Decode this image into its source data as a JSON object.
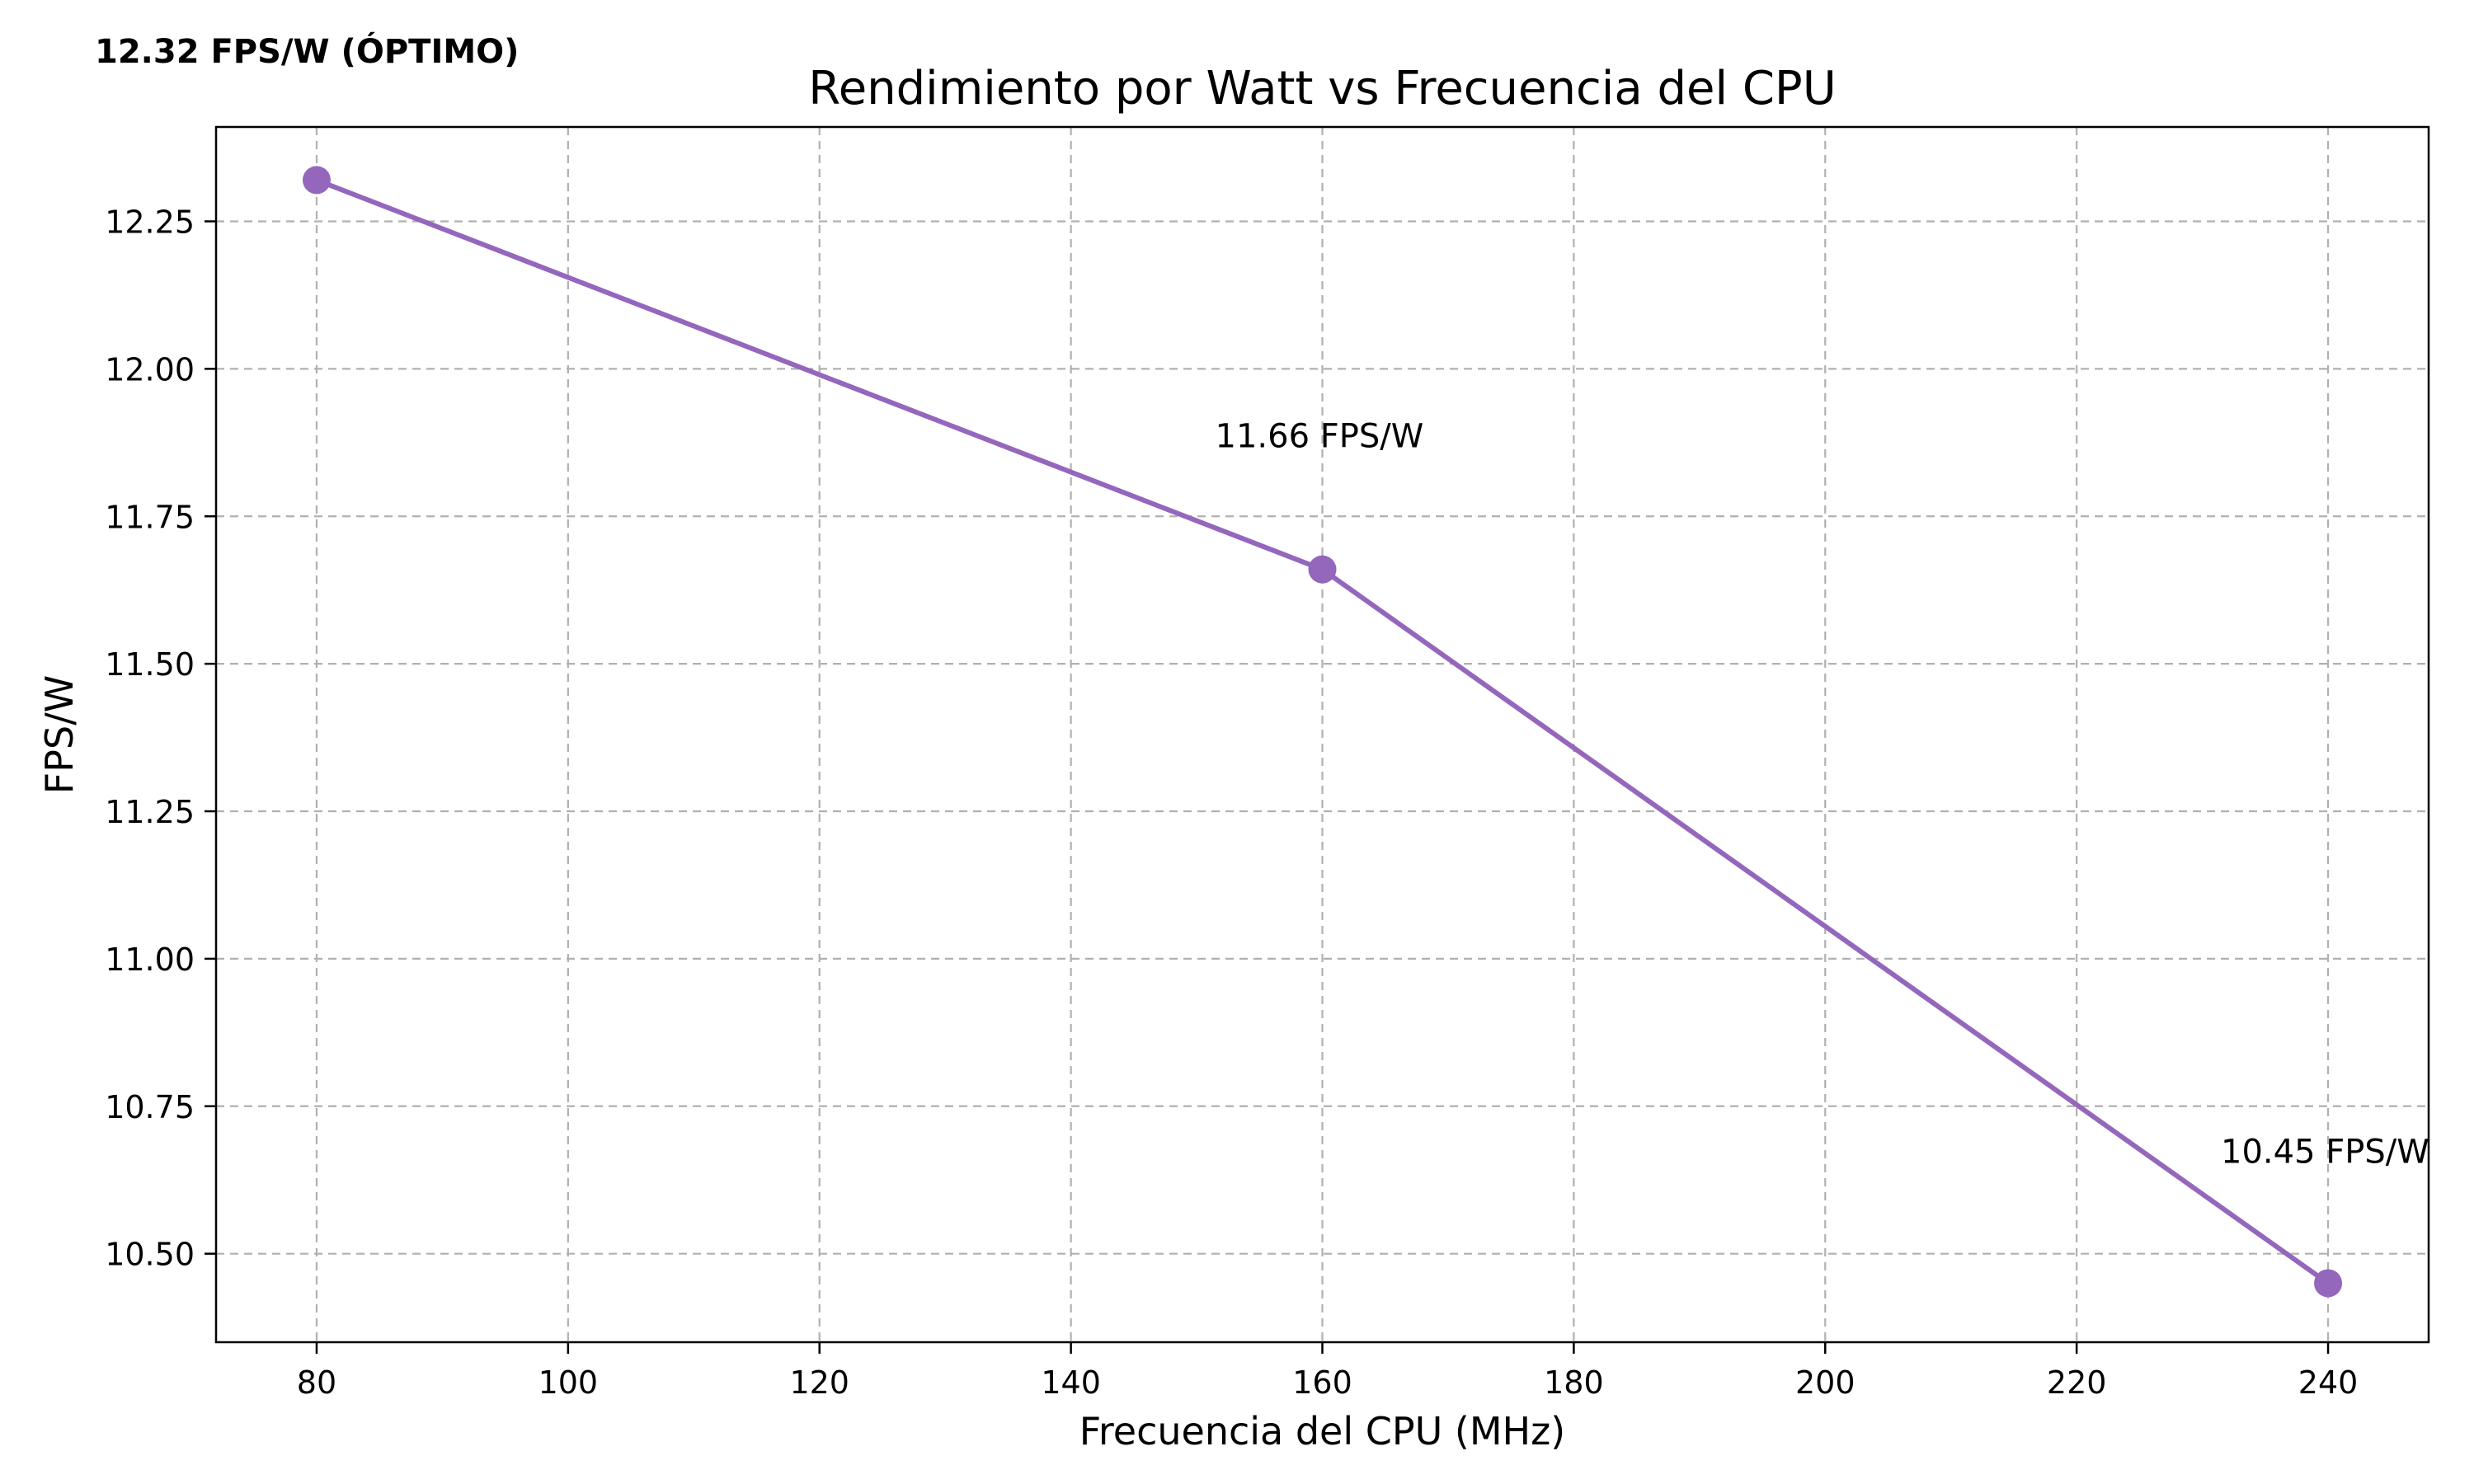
{
  "chart_data": {
    "type": "line",
    "title": "Rendimiento por Watt vs Frecuencia del CPU",
    "xlabel": "Frecuencia del CPU (MHz)",
    "ylabel": "FPS/W",
    "xlim": [
      72,
      248
    ],
    "ylim": [
      10.35,
      12.41
    ],
    "x_ticks": [
      80,
      100,
      120,
      140,
      160,
      180,
      200,
      220,
      240
    ],
    "y_ticks": [
      10.5,
      10.75,
      11.0,
      11.25,
      11.5,
      11.75,
      12.0,
      12.25
    ],
    "x_tick_labels": [
      "80",
      "100",
      "120",
      "140",
      "160",
      "180",
      "200",
      "220",
      "240"
    ],
    "y_tick_labels": [
      "10.50",
      "10.75",
      "11.00",
      "11.25",
      "11.50",
      "11.75",
      "12.00",
      "12.25"
    ],
    "grid": true,
    "series": [
      {
        "x": [
          80,
          160,
          240
        ],
        "y": [
          12.32,
          11.66,
          10.45
        ],
        "color": "#9467bd",
        "marker": "circle"
      }
    ],
    "annotations": [
      {
        "text": "12.32 FPS/W (ÓPTIMO)",
        "x": 80,
        "y": 12.32,
        "bold": true
      },
      {
        "text": "11.66 FPS/W",
        "x": 160,
        "y": 11.66,
        "bold": false
      },
      {
        "text": "10.45 FPS/W",
        "x": 240,
        "y": 10.45,
        "bold": false
      }
    ]
  }
}
